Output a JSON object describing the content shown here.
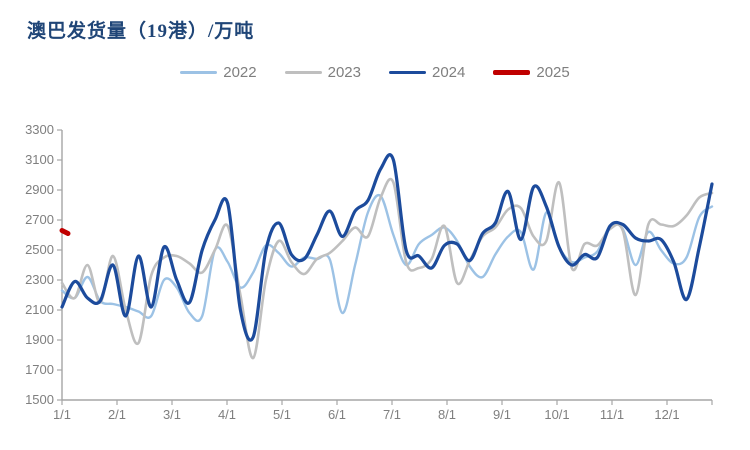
{
  "header": {
    "title": "澳巴发货量（19港）/万吨"
  },
  "style": {
    "title_color": "#1f4577",
    "axis_color": "#a6a6a6",
    "tick_text_color": "#7f7f7f",
    "background": "#ffffff"
  },
  "chart_data": {
    "type": "line",
    "title": "澳巴发货量（19港）/万吨",
    "legend_position": "top-center",
    "grid": "off",
    "x_axis": {
      "tick_labels": [
        "1/1",
        "2/1",
        "3/1",
        "4/1",
        "5/1",
        "6/1",
        "7/1",
        "8/1",
        "9/1",
        "10/1",
        "11/1",
        "12/1"
      ],
      "unit": "week",
      "points_per_year": 52
    },
    "y_axis": {
      "min": 1500,
      "max": 3300,
      "step": 200,
      "tick_labels": [
        "1500",
        "1700",
        "1900",
        "2100",
        "2300",
        "2500",
        "2700",
        "2900",
        "3100",
        "3300"
      ]
    },
    "series": [
      {
        "name": "2022",
        "color": "#9cc2e5",
        "line_width": 2.4,
        "values": [
          2230,
          2180,
          2320,
          2160,
          2140,
          2120,
          2090,
          2060,
          2300,
          2250,
          2080,
          2060,
          2500,
          2420,
          2250,
          2350,
          2530,
          2480,
          2390,
          2450,
          2440,
          2440,
          2080,
          2400,
          2750,
          2860,
          2600,
          2400,
          2540,
          2600,
          2650,
          2560,
          2390,
          2320,
          2470,
          2590,
          2620,
          2370,
          2750,
          2520,
          2420,
          2450,
          2490,
          2660,
          2640,
          2400,
          2620,
          2500,
          2410,
          2450,
          2720,
          2790
        ]
      },
      {
        "name": "2023",
        "color": "#bfbfbf",
        "line_width": 2.6,
        "values": [
          2280,
          2180,
          2400,
          2150,
          2460,
          2100,
          1880,
          2330,
          2450,
          2460,
          2410,
          2350,
          2500,
          2660,
          2200,
          1780,
          2300,
          2560,
          2420,
          2340,
          2440,
          2480,
          2560,
          2650,
          2590,
          2850,
          2950,
          2420,
          2380,
          2440,
          2660,
          2280,
          2430,
          2590,
          2650,
          2770,
          2780,
          2590,
          2560,
          2950,
          2380,
          2540,
          2530,
          2640,
          2630,
          2200,
          2670,
          2670,
          2660,
          2730,
          2850,
          2880
        ]
      },
      {
        "name": "2024",
        "color": "#1c4b9c",
        "line_width": 3.2,
        "values": [
          2120,
          2290,
          2180,
          2160,
          2400,
          2060,
          2460,
          2120,
          2520,
          2300,
          2150,
          2500,
          2700,
          2810,
          2100,
          1920,
          2500,
          2680,
          2470,
          2440,
          2600,
          2760,
          2590,
          2760,
          2830,
          3040,
          3100,
          2500,
          2460,
          2380,
          2530,
          2540,
          2430,
          2610,
          2680,
          2890,
          2570,
          2920,
          2790,
          2520,
          2400,
          2470,
          2450,
          2660,
          2670,
          2580,
          2560,
          2570,
          2420,
          2170,
          2520,
          2940
        ]
      },
      {
        "name": "2025",
        "color": "#c00000",
        "line_width": 5,
        "values": [
          2620
        ]
      }
    ]
  }
}
